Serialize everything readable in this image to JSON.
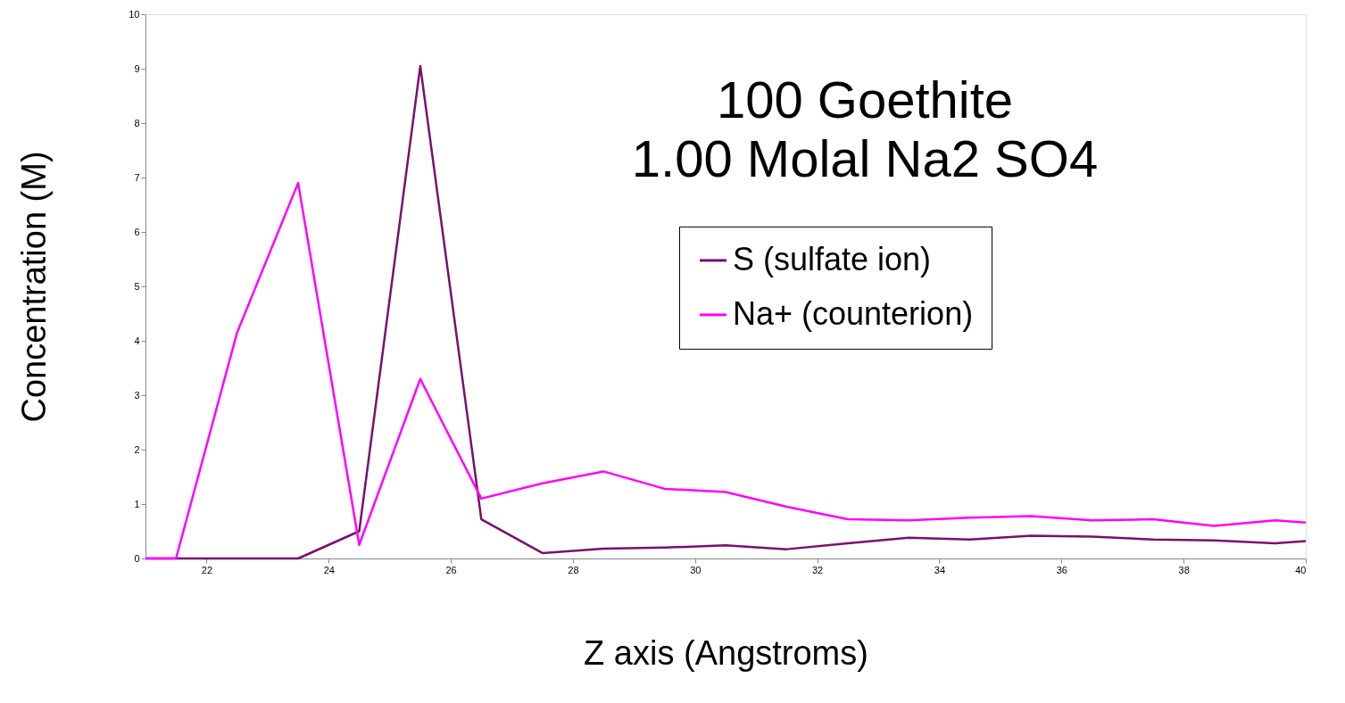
{
  "chart_data": {
    "type": "line",
    "title": "100 Goethite\n1.00 Molal Na2 SO4",
    "xlabel": "Z axis (Angstroms)",
    "ylabel": "Concentration (M)",
    "x": [
      21,
      21.5,
      22.5,
      23.5,
      24.5,
      25.5,
      26.5,
      27.5,
      28.5,
      29.5,
      30.5,
      31.5,
      32.5,
      33.5,
      34.5,
      35.5,
      36.5,
      37.5,
      38.5,
      39.5,
      40
    ],
    "series": [
      {
        "name": "S (sulfate ion)",
        "color": "#7a0f6e",
        "values": [
          0,
          0,
          0,
          0,
          0.5,
          9.05,
          0.72,
          0.1,
          0.18,
          0.2,
          0.24,
          0.17,
          0.28,
          0.38,
          0.35,
          0.42,
          0.4,
          0.35,
          0.33,
          0.28,
          0.32
        ]
      },
      {
        "name": "Na+ (counterion)",
        "color": "#ff00ff",
        "values": [
          0,
          0,
          4.15,
          6.9,
          0.25,
          3.3,
          1.1,
          1.38,
          1.6,
          1.28,
          1.22,
          0.95,
          0.72,
          0.7,
          0.75,
          0.78,
          0.7,
          0.72,
          0.6,
          0.7,
          0.66
        ]
      }
    ],
    "xlim": [
      21,
      40
    ],
    "xticks": [
      22,
      24,
      26,
      28,
      30,
      32,
      34,
      36,
      38,
      40
    ],
    "ylim": [
      0,
      10
    ],
    "yticks": [
      0,
      1,
      2,
      3,
      4,
      5,
      6,
      7,
      8,
      9,
      10
    ],
    "grid": false,
    "legend": "right",
    "marker": "none",
    "line_style": "solid"
  }
}
